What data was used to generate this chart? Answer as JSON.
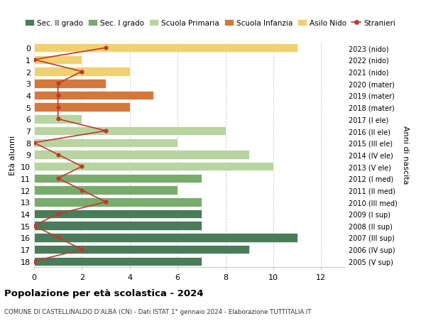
{
  "ages": [
    0,
    1,
    2,
    3,
    4,
    5,
    6,
    7,
    8,
    9,
    10,
    11,
    12,
    13,
    14,
    15,
    16,
    17,
    18
  ],
  "years": [
    "2023 (nido)",
    "2022 (nido)",
    "2021 (nido)",
    "2020 (mater)",
    "2019 (mater)",
    "2018 (mater)",
    "2017 (I ele)",
    "2016 (II ele)",
    "2015 (III ele)",
    "2014 (IV ele)",
    "2013 (V ele)",
    "2012 (I med)",
    "2011 (II med)",
    "2010 (III med)",
    "2009 (I sup)",
    "2008 (II sup)",
    "2007 (III sup)",
    "2006 (IV sup)",
    "2005 (V sup)"
  ],
  "bar_values": [
    11,
    2,
    4,
    3,
    5,
    4,
    2,
    8,
    6,
    9,
    10,
    7,
    6,
    7,
    7,
    7,
    11,
    9,
    7
  ],
  "bar_colors": [
    "#f0d070",
    "#f0d070",
    "#f0d070",
    "#d4773a",
    "#d4773a",
    "#d4773a",
    "#b8d4a0",
    "#b8d4a0",
    "#b8d4a0",
    "#b8d4a0",
    "#b8d4a0",
    "#7aab6e",
    "#7aab6e",
    "#7aab6e",
    "#4a7c59",
    "#4a7c59",
    "#4a7c59",
    "#4a7c59",
    "#4a7c59"
  ],
  "stranieri_values": [
    3,
    0,
    2,
    1,
    1,
    1,
    1,
    3,
    0,
    1,
    2,
    1,
    2,
    3,
    1,
    0,
    1,
    2,
    0
  ],
  "stranieri_color": "#c0392b",
  "legend_labels": [
    "Sec. II grado",
    "Sec. I grado",
    "Scuola Primaria",
    "Scuola Infanzia",
    "Asilo Nido",
    "Stranieri"
  ],
  "legend_colors": [
    "#4a7c59",
    "#7aab6e",
    "#b8d4a0",
    "#d4773a",
    "#f0d070",
    "#c0392b"
  ],
  "ylabel_left": "Età alunni",
  "ylabel_right": "Anni di nascita",
  "title": "Popolazione per età scolastica - 2024",
  "subtitle": "COMUNE DI CASTELLINALDO D'ALBA (CN) - Dati ISTAT 1° gennaio 2024 - Elaborazione TUTTITALIA.IT",
  "xlim": [
    0,
    13
  ],
  "xticks": [
    0,
    2,
    4,
    6,
    8,
    10,
    12
  ],
  "bg_color": "#ffffff",
  "grid_color": "#cccccc"
}
